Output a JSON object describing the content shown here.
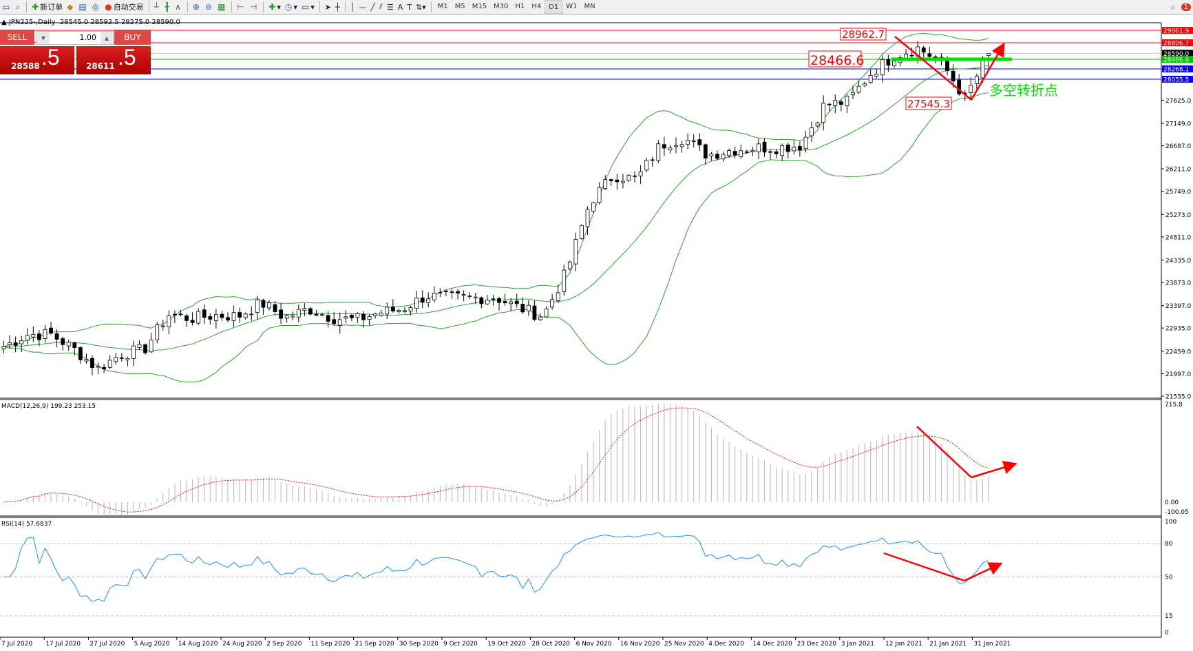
{
  "toolbar": {
    "new_order": "新订单",
    "auto_trading": "自动交易",
    "timeframes": [
      "M1",
      "M5",
      "M15",
      "M30",
      "H1",
      "H4",
      "D1",
      "W1",
      "MN"
    ],
    "active_timeframe": "D1",
    "notification_count": "1"
  },
  "chart_header": {
    "symbol": "JPN225-,Daily",
    "ohlc": "28545.0 28592.5 28275.0 28590.0"
  },
  "trade_panel": {
    "sell_label": "SELL",
    "buy_label": "BUY",
    "lot": "1.00",
    "sell_price_main": "28588",
    "sell_price_frac": ".5",
    "buy_price_main": "28611",
    "buy_price_frac": ".5"
  },
  "price_axis": [
    "27625.0",
    "27149.0",
    "26687.0",
    "26211.0",
    "25749.0",
    "25273.0",
    "24811.0",
    "24335.0",
    "23873.0",
    "23397.0",
    "22935.0",
    "22459.0",
    "21997.0",
    "21535.0"
  ],
  "levels": [
    {
      "label": "29061.9",
      "value": 29061.9,
      "color": "#ff0000"
    },
    {
      "label": "28806.7",
      "value": 28806.7,
      "color": "#ff0000"
    },
    {
      "label": "28590.0",
      "value": 28590.0,
      "color": "#c0c0c0"
    },
    {
      "label": "28466.6",
      "value": 28466.6,
      "color": "#00c000"
    },
    {
      "label": "28268.1",
      "value": 28268.1,
      "color": "#0000ff"
    },
    {
      "label": "28055.5",
      "value": 28055.5,
      "color": "#0000ff"
    }
  ],
  "annotations": {
    "high_label": "28962.7",
    "mid_label": "28466.6",
    "low_label": "27545.3",
    "turning_point": "多空转折点"
  },
  "macd": {
    "title": "MACD(12,26,9) 199.23 253.15",
    "axis": [
      "715.8",
      "0.00",
      "-100.05"
    ]
  },
  "rsi": {
    "title": "RSI(14) 57.6837",
    "axis": [
      "100",
      "80",
      "50",
      "15",
      "0"
    ]
  },
  "dates": [
    "7 Jul 2020",
    "17 Jul 2020",
    "27 Jul 2020",
    "5 Aug 2020",
    "14 Aug 2020",
    "24 Aug 2020",
    "2 Sep 2020",
    "11 Sep 2020",
    "21 Sep 2020",
    "30 Sep 2020",
    "9 Oct 2020",
    "19 Oct 2020",
    "28 Oct 2020",
    "6 Nov 2020",
    "16 Nov 2020",
    "25 Nov 2020",
    "4 Dec 2020",
    "14 Dec 2020",
    "23 Dec 2020",
    "3 Jan 2021",
    "12 Jan 2021",
    "21 Jan 2021",
    "31 Jan 2021"
  ],
  "chart_data": {
    "type": "candlestick",
    "close_path_sampled": [
      22556,
      22800,
      22810,
      22500,
      22100,
      22400,
      22500,
      23210,
      23130,
      23200,
      23180,
      23450,
      23150,
      23330,
      23150,
      23100,
      23250,
      23330,
      23600,
      23560,
      23560,
      23560,
      23350,
      23180,
      24100,
      25530,
      26080,
      26000,
      26700,
      26850,
      26500,
      26600,
      26650,
      26650,
      26700,
      27530,
      27600,
      28190,
      28550,
      28700,
      28400,
      27660,
      28590
    ],
    "ylim": [
      21535,
      29200
    ],
    "indicators": [
      "Bollinger Bands",
      "MACD(12,26,9)",
      "RSI(14)"
    ],
    "colors": {
      "bands": "#2ea02e",
      "macd_hist": "#c0c0c0",
      "macd_signal": "#ff0000",
      "rsi": "#1e90ff",
      "arrows": "#ff0000",
      "text_green": "#00e000"
    }
  }
}
